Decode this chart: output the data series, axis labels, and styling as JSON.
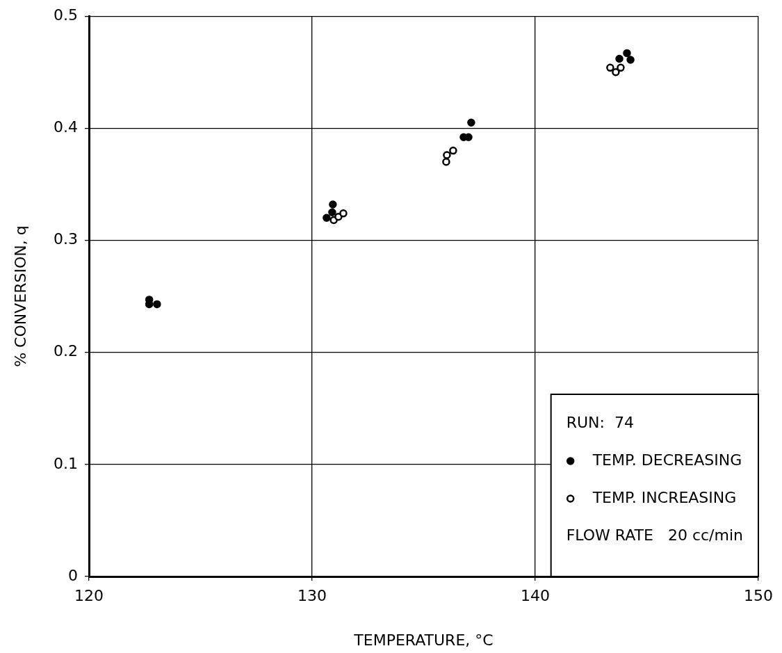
{
  "chart_data": {
    "type": "scatter",
    "xlabel": "TEMPERATURE, °C",
    "ylabel": "% CONVERSION, q",
    "xlim": [
      120,
      150
    ],
    "xticks": [
      120,
      130,
      140,
      150
    ],
    "ylim": [
      0,
      0.5
    ],
    "yticks": [
      0,
      0.1,
      0.2,
      0.3,
      0.4,
      0.5
    ],
    "grid": true,
    "legend": "bottom right",
    "marker": "circle",
    "annotations": [
      "RUN:  74",
      "FLOW RATE   20 cc/min"
    ],
    "series": [
      {
        "name": "TEMP. DECREASING",
        "color": "#000000",
        "x": [
          122.7,
          122.7,
          123.05,
          130.93,
          130.9,
          130.65,
          137.13,
          136.79,
          137.01,
          144.11,
          143.77,
          144.27
        ],
        "values": [
          0.247,
          0.243,
          0.243,
          0.332,
          0.325,
          0.32,
          0.405,
          0.392,
          0.392,
          0.467,
          0.462,
          0.461
        ]
      },
      {
        "name": "TEMP. INCREASING",
        "color": "#000000",
        "x": [
          130.97,
          131.18,
          131.4,
          136.01,
          136.04,
          136.32,
          143.36,
          143.61,
          143.83
        ],
        "values": [
          0.318,
          0.321,
          0.324,
          0.37,
          0.376,
          0.38,
          0.454,
          0.45,
          0.454
        ]
      }
    ]
  }
}
